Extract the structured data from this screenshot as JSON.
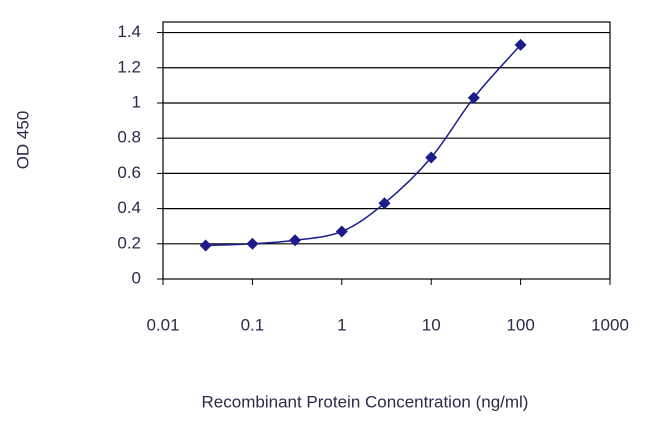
{
  "chart_data": {
    "type": "line",
    "x_label": "Recombinant Protein Concentration (ng/ml)",
    "y_label": "OD 450",
    "x": [
      0.03,
      0.1,
      0.3,
      1,
      3,
      10,
      30,
      100
    ],
    "series": [
      {
        "name": "OD 450",
        "color": "#1c1c8a",
        "values": [
          0.19,
          0.2,
          0.22,
          0.27,
          0.43,
          0.69,
          1.03,
          1.33
        ]
      }
    ],
    "xscale": "log",
    "xlim": [
      0.01,
      1000
    ],
    "xticks": [
      0.01,
      0.1,
      1,
      10,
      100,
      1000
    ],
    "ylim": [
      0,
      1.46
    ],
    "yticks": [
      0.0,
      0.2,
      0.4,
      0.6,
      0.8,
      1.0,
      1.2,
      1.4
    ],
    "grid": true
  }
}
